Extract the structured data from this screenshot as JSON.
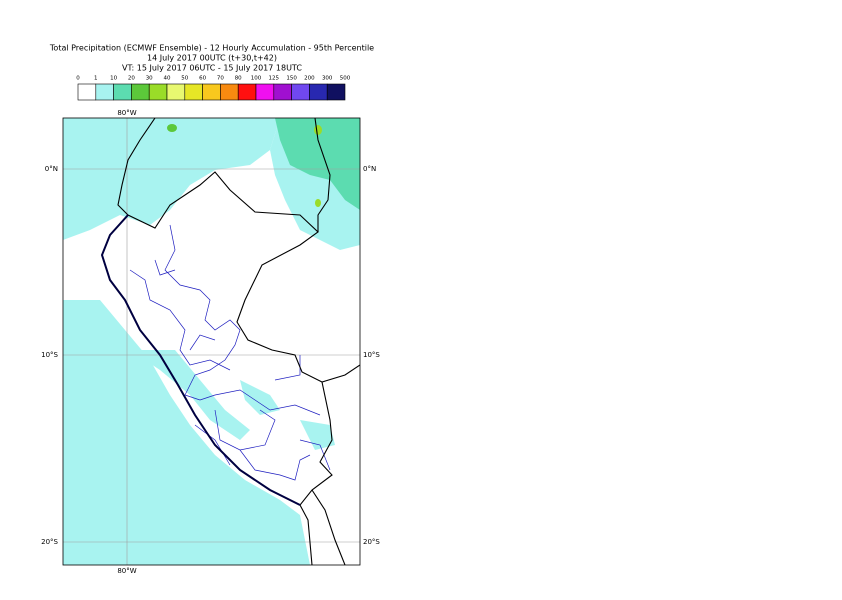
{
  "header": {
    "lines": [
      "Total Precipitation (ECMWF Ensemble) - 12 Hourly Accumulation - 95th Percentile",
      "14 July 2017 00UTC (t+30,t+42)",
      "VT: 15 July 2017 06UTC - 15 July 2017 18UTC"
    ]
  },
  "legend": {
    "labels": [
      0,
      1,
      10,
      20,
      30,
      40,
      50,
      60,
      70,
      80,
      100,
      125,
      150,
      200,
      300,
      500
    ],
    "colors": [
      "#ffffff",
      "#a8f3f0",
      "#5cdcb0",
      "#5cc83a",
      "#9adc28",
      "#e8f870",
      "#e6e626",
      "#f8c81e",
      "#f88a10",
      "#ff1010",
      "#f010f0",
      "#a010d0",
      "#7048f0",
      "#2828b0",
      "#101060"
    ]
  },
  "map": {
    "top_labels": [
      "80°W"
    ],
    "bottom_labels": [
      "80°W"
    ],
    "left_labels": [
      "0°N",
      "10°S",
      "20°S"
    ],
    "right_labels": [
      "0°N",
      "10°S",
      "20°S"
    ]
  }
}
